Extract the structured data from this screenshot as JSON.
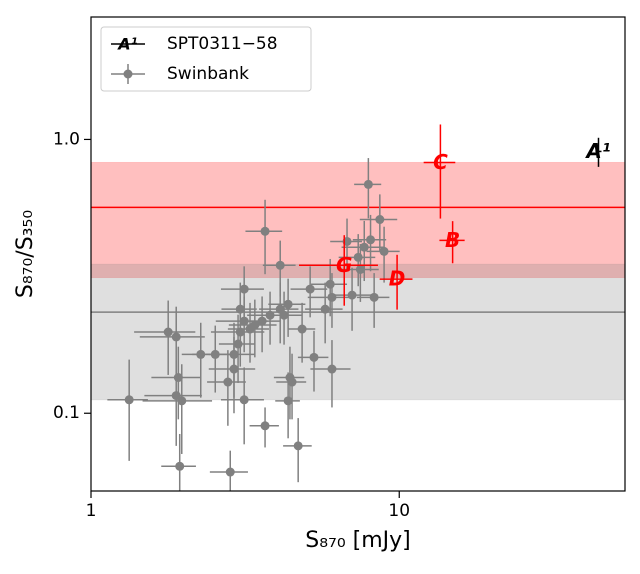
{
  "chart_data": {
    "type": "scatter",
    "xlabel": "S₈₇₀ [mJy]",
    "ylabel": "S₈₇₀/S₃₅₀",
    "xscale": "log",
    "yscale": "log",
    "xlim": [
      1,
      54
    ],
    "ylim": [
      0.052,
      2.8
    ],
    "xticks": [
      1,
      10
    ],
    "yticks": [
      0.1,
      {
        "value": 1,
        "label": "1.0"
      }
    ],
    "legend": "upper left",
    "bands": [
      {
        "low": 0.313,
        "high": 0.824,
        "median": 0.565,
        "color": "#ff0000"
      },
      {
        "low": 0.112,
        "high": 0.35,
        "median": 0.234,
        "color": "#808080"
      }
    ],
    "series": [
      {
        "name": "SPT0311−58",
        "labels": [
          "A¹",
          "B",
          "C",
          "D",
          "G"
        ],
        "colors": [
          "#000000",
          "#ff0000",
          "#ff0000",
          "#ff0000",
          "#ff0000"
        ],
        "x": [
          44.3,
          14.9,
          13.6,
          9.84,
          6.63
        ],
        "values": [
          0.904,
          0.428,
          0.824,
          0.309,
          0.347
        ],
        "xerr": [
          1,
          1.4,
          1.6,
          1.2,
          1.9
        ],
        "yerr": [
          0.11,
          0.075,
          0.31,
          0.07,
          0.1
        ]
      },
      {
        "name": "Swinbank",
        "color": "#808080",
        "x": [
          1.33,
          1.78,
          1.89,
          1.89,
          1.92,
          1.97,
          1.94,
          2.27,
          2.53,
          2.78,
          2.83,
          2.91,
          2.91,
          3.0,
          3.05,
          3.05,
          3.14,
          3.14,
          3.14,
          3.28,
          3.4,
          3.59,
          3.67,
          3.67,
          3.81,
          4.11,
          4.11,
          4.23,
          4.36,
          4.36,
          4.42,
          4.49,
          4.7,
          4.84,
          5.14,
          5.29,
          5.75,
          5.97,
          6.05,
          6.05,
          6.77,
          7.03,
          7.36,
          7.48,
          7.7,
          7.94,
          8.07,
          8.29,
          8.65,
          8.93
        ],
        "values": [
          0.112,
          0.198,
          0.19,
          0.116,
          0.135,
          0.111,
          0.064,
          0.164,
          0.164,
          0.13,
          0.061,
          0.145,
          0.164,
          0.179,
          0.198,
          0.24,
          0.284,
          0.217,
          0.112,
          0.203,
          0.21,
          0.217,
          0.462,
          0.09,
          0.228,
          0.347,
          0.24,
          0.228,
          0.25,
          0.111,
          0.135,
          0.13,
          0.076,
          0.203,
          0.284,
          0.16,
          0.24,
          0.296,
          0.265,
          0.145,
          0.424,
          0.27,
          0.371,
          0.335,
          0.404,
          0.685,
          0.43,
          0.265,
          0.51,
          0.39
        ],
        "xerr": [
          0.2,
          0.4,
          0.45,
          0.4,
          0.35,
          0.5,
          0.25,
          0.3,
          0.4,
          0.4,
          0.4,
          0.5,
          0.5,
          0.4,
          0.6,
          0.4,
          0.5,
          0.6,
          0.5,
          0.5,
          0.6,
          0.5,
          0.5,
          0.4,
          0.6,
          0.5,
          0.6,
          0.6,
          0.6,
          0.4,
          0.5,
          0.5,
          0.5,
          0.5,
          0.7,
          0.6,
          0.8,
          0.8,
          1.0,
          0.9,
          0.8,
          1.1,
          1.0,
          1.1,
          1.2,
          0.8,
          1.0,
          1.0,
          1.2,
          1.1
        ],
        "yerr": [
          0.045,
          0.06,
          0.055,
          0.04,
          0.04,
          0.04,
          0.02,
          0.05,
          0.045,
          0.04,
          0.012,
          0.045,
          0.05,
          0.05,
          0.05,
          0.06,
          0.06,
          0.05,
          0.035,
          0.05,
          0.05,
          0.05,
          0.14,
          0.015,
          0.05,
          0.08,
          0.06,
          0.05,
          0.06,
          0.03,
          0.04,
          0.035,
          0.02,
          0.05,
          0.06,
          0.04,
          0.06,
          0.07,
          0.06,
          0.04,
          0.09,
          0.07,
          0.08,
          0.08,
          0.1,
          0.17,
          0.1,
          0.06,
          0.12,
          0.09
        ]
      }
    ]
  }
}
